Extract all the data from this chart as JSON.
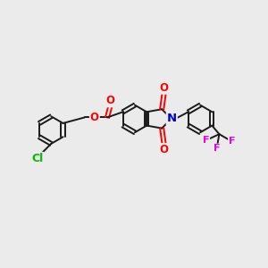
{
  "background_color": "#ebebeb",
  "bond_color": "#1a1a1a",
  "bond_width": 1.4,
  "atom_colors": {
    "O": "#ff0000",
    "N": "#0000cc",
    "Cl": "#00bb00",
    "F": "#ee00ee",
    "C": "#1a1a1a"
  },
  "font_size_atom": 8.5,
  "fig_width": 3.0,
  "fig_height": 3.0,
  "dpi": 100
}
